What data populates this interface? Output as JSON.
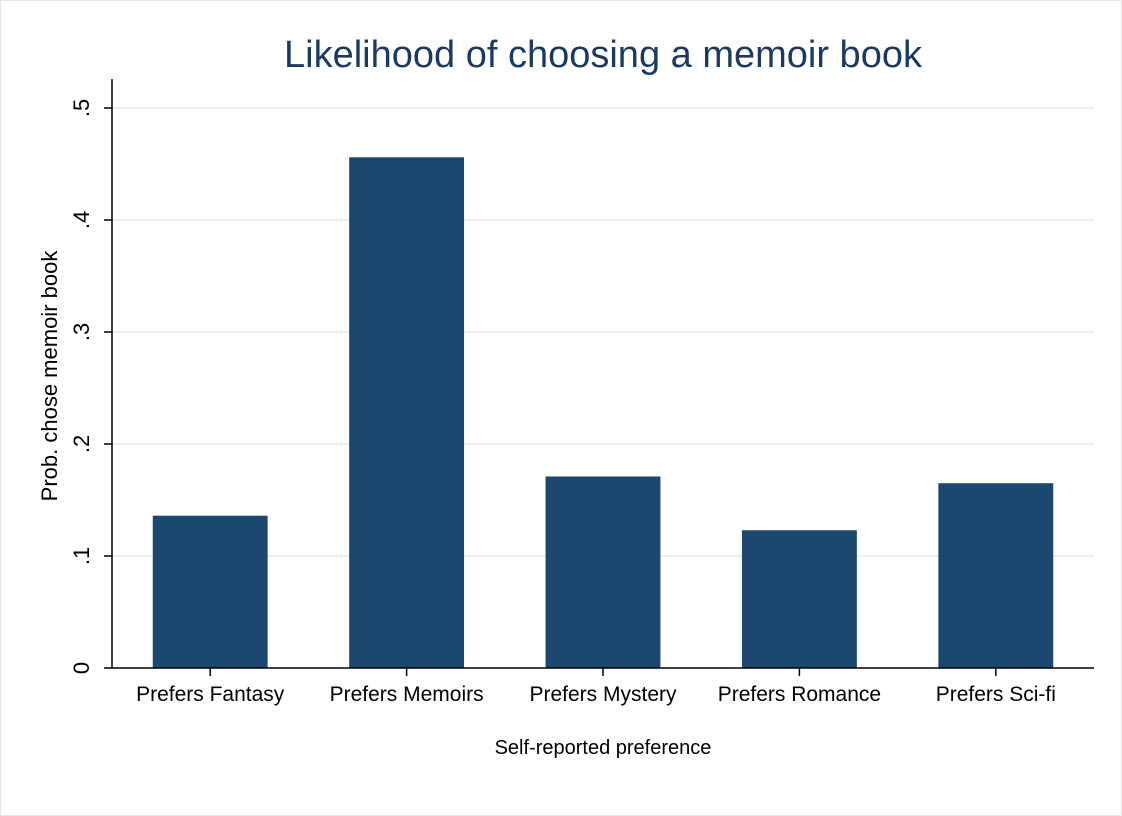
{
  "chart_data": {
    "type": "bar",
    "title": "Likelihood of choosing a memoir book",
    "xlabel": "Self-reported preference",
    "ylabel": "Prob. chose memoir book",
    "categories": [
      "Prefers Fantasy",
      "Prefers Memoirs",
      "Prefers Mystery",
      "Prefers Romance",
      "Prefers Sci-fi"
    ],
    "values": [
      0.136,
      0.456,
      0.171,
      0.123,
      0.165
    ],
    "ylim": [
      0,
      0.5
    ],
    "yticks": [
      0,
      0.1,
      0.2,
      0.3,
      0.4,
      0.5
    ],
    "ytick_labels": [
      "0",
      ".1",
      ".2",
      ".3",
      ".4",
      ".5"
    ],
    "grid": true,
    "legend": "none",
    "colors": {
      "bar": "#1c4870",
      "title": "#1c3a5e",
      "grid": "#e4ecf0",
      "axis": "#000000"
    }
  }
}
